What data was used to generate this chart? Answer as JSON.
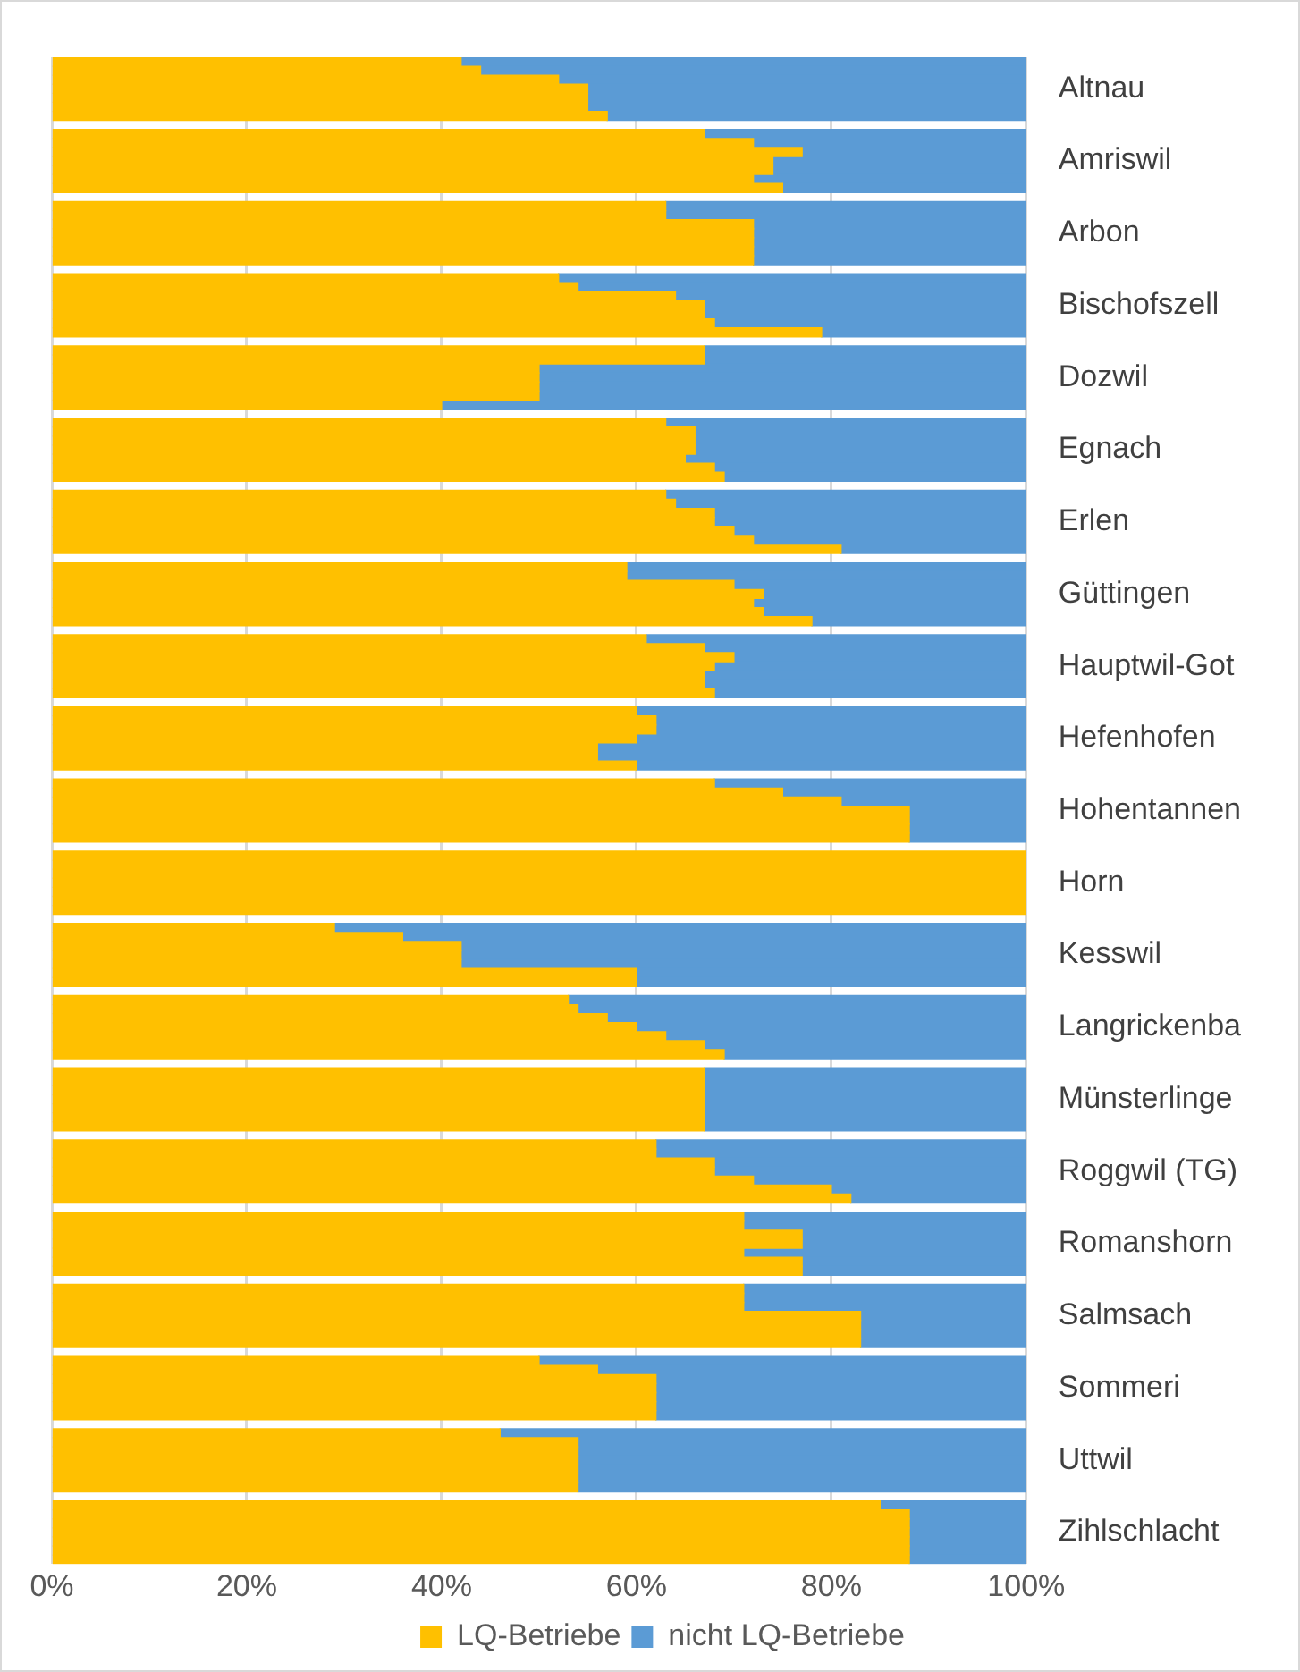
{
  "chart_data": {
    "type": "bar",
    "orientation": "horizontal",
    "stacked": true,
    "categories": [
      null,
      null,
      null,
      "Altnau",
      null,
      null,
      null,
      null,
      null,
      null,
      null,
      "Amriswil",
      null,
      null,
      null,
      null,
      null,
      null,
      null,
      "Arbon",
      null,
      null,
      null,
      null,
      null,
      null,
      null,
      "Bischofszell",
      null,
      null,
      null,
      null,
      null,
      null,
      null,
      "Dozwil",
      null,
      null,
      null,
      null,
      null,
      null,
      null,
      "Egnach",
      null,
      null,
      null,
      null,
      null,
      null,
      null,
      "Erlen",
      null,
      null,
      null,
      null,
      null,
      null,
      null,
      "Güttingen",
      null,
      null,
      null,
      null,
      null,
      null,
      null,
      "Hauptwil-Got",
      null,
      null,
      null,
      null,
      null,
      null,
      null,
      "Hefenhofen",
      null,
      null,
      null,
      null,
      null,
      null,
      null,
      "Hohentannen",
      null,
      null,
      null,
      null,
      null,
      null,
      null,
      "Horn",
      null,
      null,
      null,
      null,
      null,
      null,
      null,
      "Kesswil",
      null,
      null,
      null,
      null,
      null,
      null,
      null,
      "Langrickenba",
      null,
      null,
      null,
      null,
      null,
      null,
      null,
      "Münsterlinge",
      null,
      null,
      null,
      null,
      null,
      null,
      null,
      "Roggwil (TG)",
      null,
      null,
      null,
      null,
      null,
      null,
      null,
      "Romanshorn",
      null,
      null,
      null,
      null,
      null,
      null,
      null,
      "Salmsach",
      null,
      null,
      null,
      null,
      null,
      null,
      null,
      "Sommeri",
      null,
      null,
      null,
      null,
      null,
      null,
      null,
      "Uttwil",
      null,
      null,
      null,
      null,
      null,
      null,
      null,
      "Zihlschlacht",
      null,
      null,
      null
    ],
    "series": [
      {
        "name": "LQ-Betriebe",
        "color": "#ffc000",
        "values": [
          42,
          44,
          52,
          55,
          55,
          55,
          57,
          null,
          67,
          72,
          77,
          74,
          74,
          72,
          75,
          null,
          63,
          63,
          72,
          72,
          72,
          72,
          72,
          null,
          52,
          54,
          64,
          67,
          67,
          68,
          79,
          null,
          67,
          67,
          50,
          50,
          50,
          50,
          40,
          null,
          63,
          66,
          66,
          66,
          65,
          68,
          69,
          null,
          63,
          64,
          68,
          68,
          70,
          72,
          81,
          null,
          59,
          59,
          70,
          73,
          72,
          73,
          78,
          null,
          61,
          67,
          70,
          68,
          67,
          67,
          68,
          null,
          60,
          62,
          62,
          60,
          56,
          56,
          60,
          null,
          68,
          75,
          81,
          88,
          88,
          88,
          88,
          null,
          100,
          100,
          100,
          100,
          100,
          100,
          100,
          null,
          29,
          36,
          42,
          42,
          42,
          60,
          60,
          null,
          53,
          54,
          57,
          60,
          63,
          67,
          69,
          null,
          67,
          67,
          67,
          67,
          67,
          67,
          67,
          null,
          62,
          62,
          68,
          68,
          72,
          80,
          82,
          null,
          71,
          71,
          77,
          77,
          71,
          77,
          77,
          null,
          71,
          71,
          71,
          83,
          83,
          83,
          83,
          null,
          50,
          56,
          62,
          62,
          62,
          62,
          62,
          null,
          46,
          54,
          54,
          54,
          54,
          54,
          54,
          null,
          85,
          88,
          88,
          88,
          88,
          88,
          88
        ]
      },
      {
        "name": "nicht LQ-Betriebe",
        "color": "#5b9bd5",
        "values": [
          58,
          56,
          48,
          45,
          45,
          45,
          43,
          null,
          33,
          28,
          23,
          26,
          26,
          28,
          25,
          null,
          37,
          37,
          28,
          28,
          28,
          28,
          28,
          null,
          48,
          46,
          36,
          33,
          33,
          32,
          21,
          null,
          33,
          33,
          50,
          50,
          50,
          50,
          60,
          null,
          37,
          34,
          34,
          34,
          35,
          32,
          31,
          null,
          37,
          36,
          32,
          32,
          30,
          28,
          19,
          null,
          41,
          41,
          30,
          27,
          28,
          27,
          22,
          null,
          39,
          33,
          30,
          32,
          33,
          33,
          32,
          null,
          40,
          38,
          38,
          40,
          44,
          44,
          40,
          null,
          32,
          25,
          19,
          12,
          12,
          12,
          12,
          null,
          0,
          0,
          0,
          0,
          0,
          0,
          0,
          null,
          71,
          64,
          58,
          58,
          58,
          40,
          40,
          null,
          47,
          46,
          43,
          40,
          37,
          33,
          31,
          null,
          33,
          33,
          33,
          33,
          33,
          33,
          33,
          null,
          38,
          38,
          32,
          32,
          28,
          20,
          18,
          null,
          29,
          29,
          23,
          23,
          29,
          23,
          23,
          null,
          29,
          29,
          29,
          17,
          17,
          17,
          17,
          null,
          50,
          44,
          38,
          38,
          38,
          38,
          38,
          null,
          54,
          46,
          46,
          46,
          46,
          46,
          46,
          null,
          15,
          12,
          12,
          12,
          12,
          12,
          12
        ]
      }
    ],
    "xlim": [
      0,
      100
    ],
    "xticks": [
      {
        "value": 0,
        "label": "0%"
      },
      {
        "value": 20,
        "label": "20%"
      },
      {
        "value": 40,
        "label": "40%"
      },
      {
        "value": 60,
        "label": "60%"
      },
      {
        "value": 80,
        "label": "80%"
      },
      {
        "value": 100,
        "label": "100%"
      }
    ],
    "grid": "x",
    "legend": "bottom"
  }
}
